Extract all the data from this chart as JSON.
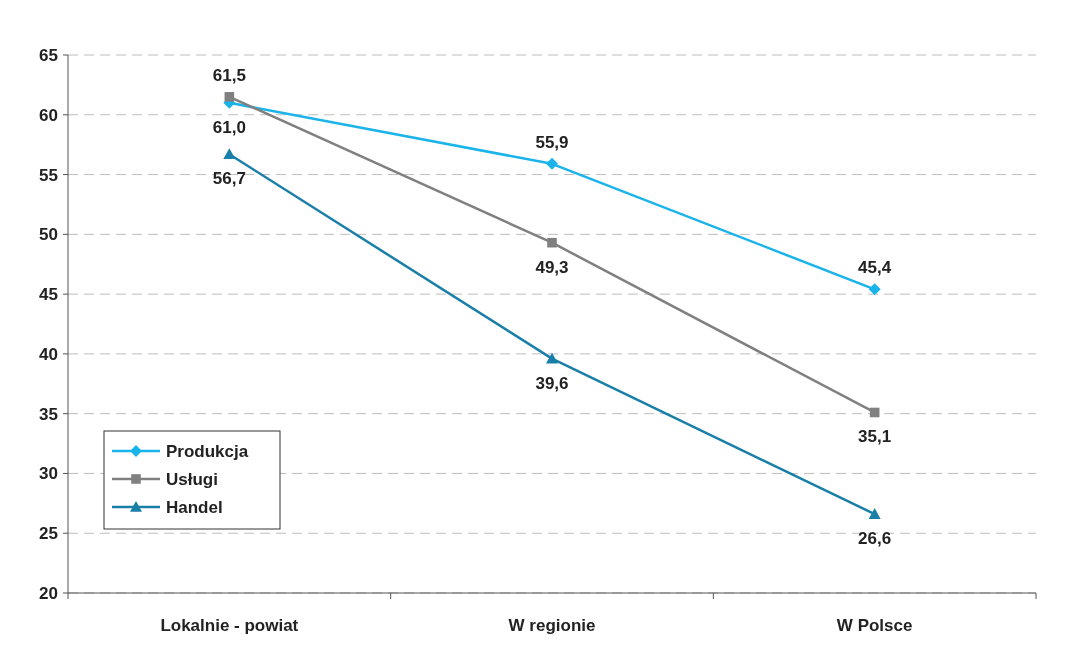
{
  "chart_data": {
    "type": "line",
    "categories": [
      "Lokalnie - powiat",
      "W regionie",
      "W Polsce"
    ],
    "series": [
      {
        "name": "Produkcja",
        "color": "#1ab4ea",
        "marker": "diamond",
        "values": [
          61.0,
          55.9,
          45.4
        ],
        "value_labels": [
          "61,0",
          "55,9",
          "45,4"
        ]
      },
      {
        "name": "Usługi",
        "color": "#808080",
        "marker": "square",
        "values": [
          61.5,
          49.3,
          35.1
        ],
        "value_labels": [
          "61,5",
          "49,3",
          "35,1"
        ]
      },
      {
        "name": "Handel",
        "color": "#1a7fa8",
        "marker": "triangle",
        "values": [
          56.7,
          39.6,
          26.6
        ],
        "value_labels": [
          "56,7",
          "39,6",
          "26,6"
        ]
      }
    ],
    "ylim": [
      20,
      65
    ],
    "yticks": [
      20,
      25,
      30,
      35,
      40,
      45,
      50,
      55,
      60,
      65
    ],
    "grid": "y",
    "legend": "bottom left",
    "line_style": "solid"
  }
}
